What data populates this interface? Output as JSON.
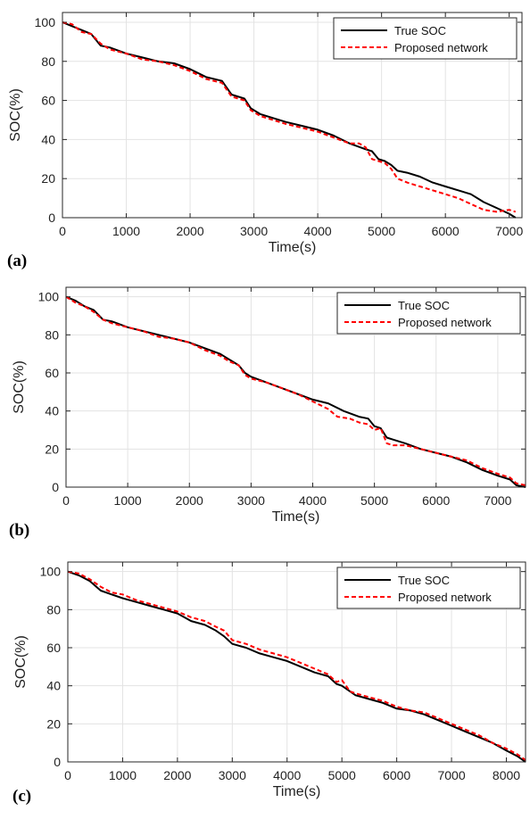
{
  "chart_data": [
    {
      "type": "line",
      "panel_label": "(a)",
      "xlabel": "Time(s)",
      "ylabel": "SOC(%)",
      "xlim": [
        0,
        7200
      ],
      "ylim": [
        0,
        105
      ],
      "xticks": [
        0,
        1000,
        2000,
        3000,
        4000,
        5000,
        6000,
        7000
      ],
      "yticks": [
        0,
        20,
        40,
        60,
        80,
        100
      ],
      "grid": true,
      "legend_position": "top-right",
      "series": [
        {
          "name": "True SOC",
          "color": "#000000",
          "style": "solid",
          "x": [
            0,
            150,
            300,
            450,
            600,
            750,
            1000,
            1250,
            1500,
            1750,
            2000,
            2250,
            2500,
            2650,
            2850,
            2950,
            3100,
            3300,
            3500,
            3750,
            4000,
            4250,
            4500,
            4750,
            4850,
            4950,
            5050,
            5150,
            5250,
            5400,
            5600,
            5800,
            6000,
            6200,
            6400,
            6600,
            6800,
            7000,
            7100
          ],
          "y": [
            100,
            98,
            96,
            94,
            88,
            87,
            84,
            82,
            80,
            79,
            76,
            72,
            70,
            63,
            61,
            56,
            53,
            51,
            49,
            47,
            45,
            42,
            38,
            35,
            34,
            30,
            29,
            27,
            24,
            23,
            21,
            18,
            16,
            14,
            12,
            8,
            5,
            2,
            0
          ]
        },
        {
          "name": "Proposed network",
          "color": "#ff0000",
          "style": "dashed",
          "x": [
            0,
            150,
            300,
            450,
            600,
            750,
            1000,
            1250,
            1500,
            1750,
            2000,
            2250,
            2500,
            2650,
            2850,
            2950,
            3100,
            3300,
            3500,
            3750,
            4000,
            4250,
            4500,
            4650,
            4750,
            4850,
            4950,
            5050,
            5150,
            5250,
            5400,
            5600,
            5800,
            6000,
            6200,
            6400,
            6600,
            6800,
            7000,
            7100
          ],
          "y": [
            100,
            99,
            95,
            94,
            89,
            86,
            84,
            81,
            80,
            78,
            75,
            71,
            69,
            62,
            60,
            55,
            52,
            50,
            48,
            46,
            44,
            41,
            38,
            38,
            36,
            30,
            29,
            28,
            25,
            20,
            18,
            16,
            14,
            12,
            10,
            7,
            4,
            3,
            4,
            3
          ]
        }
      ]
    },
    {
      "type": "line",
      "panel_label": "(b)",
      "xlabel": "Time(s)",
      "ylabel": "SOC(%)",
      "xlim": [
        0,
        7450
      ],
      "ylim": [
        0,
        105
      ],
      "xticks": [
        0,
        1000,
        2000,
        3000,
        4000,
        5000,
        6000,
        7000
      ],
      "yticks": [
        0,
        20,
        40,
        60,
        80,
        100
      ],
      "grid": true,
      "legend_position": "top-right",
      "series": [
        {
          "name": "True SOC",
          "color": "#000000",
          "style": "solid",
          "x": [
            0,
            150,
            300,
            450,
            600,
            750,
            1000,
            1250,
            1500,
            1750,
            2000,
            2250,
            2500,
            2650,
            2800,
            2900,
            3000,
            3250,
            3500,
            3750,
            4000,
            4250,
            4500,
            4750,
            4900,
            5000,
            5100,
            5200,
            5300,
            5500,
            5750,
            6000,
            6250,
            6500,
            6750,
            7000,
            7200,
            7300,
            7450
          ],
          "y": [
            100,
            98,
            95,
            93,
            88,
            87,
            84,
            82,
            80,
            78,
            76,
            73,
            70,
            67,
            64,
            60,
            58,
            55,
            52,
            49,
            46,
            44,
            40,
            37,
            36,
            32,
            31,
            26,
            25,
            23,
            20,
            18,
            16,
            13,
            9,
            6,
            4,
            1,
            0
          ]
        },
        {
          "name": "Proposed network",
          "color": "#ff0000",
          "style": "dashed",
          "x": [
            0,
            150,
            300,
            450,
            600,
            750,
            1000,
            1250,
            1500,
            1750,
            2000,
            2250,
            2500,
            2650,
            2800,
            2900,
            3000,
            3250,
            3500,
            3750,
            4000,
            4250,
            4400,
            4600,
            4750,
            4900,
            5000,
            5100,
            5200,
            5300,
            5500,
            5750,
            6000,
            6250,
            6500,
            6750,
            7000,
            7200,
            7300,
            7450
          ],
          "y": [
            100,
            97,
            95,
            92,
            88,
            86,
            84,
            82,
            79,
            78,
            76,
            72,
            69,
            66,
            64,
            59,
            57,
            55,
            52,
            49,
            45,
            41,
            37,
            36,
            34,
            33,
            30,
            31,
            23,
            22,
            22,
            20,
            18,
            16,
            14,
            10,
            7,
            5,
            2,
            1
          ]
        }
      ]
    },
    {
      "type": "line",
      "panel_label": "(c)",
      "xlabel": "Time(s)",
      "ylabel": "SOC(%)",
      "xlim": [
        0,
        8350
      ],
      "ylim": [
        0,
        105
      ],
      "xticks": [
        0,
        1000,
        2000,
        3000,
        4000,
        5000,
        6000,
        7000,
        8000
      ],
      "yticks": [
        0,
        20,
        40,
        60,
        80,
        100
      ],
      "grid": true,
      "legend_position": "top-right",
      "series": [
        {
          "name": "True SOC",
          "color": "#000000",
          "style": "solid",
          "x": [
            0,
            200,
            400,
            600,
            800,
            1000,
            1250,
            1500,
            1750,
            2000,
            2250,
            2500,
            2700,
            2850,
            3000,
            3250,
            3500,
            3750,
            4000,
            4250,
            4500,
            4750,
            4900,
            5000,
            5150,
            5250,
            5500,
            5750,
            6000,
            6250,
            6500,
            6750,
            7000,
            7250,
            7500,
            7750,
            8000,
            8200,
            8350
          ],
          "y": [
            100,
            98,
            95,
            90,
            88,
            86,
            84,
            82,
            80,
            78,
            74,
            72,
            69,
            66,
            62,
            60,
            57,
            55,
            53,
            50,
            47,
            45,
            41,
            40,
            37,
            35,
            33,
            31,
            28,
            27,
            25,
            22,
            19,
            16,
            13,
            10,
            6,
            3,
            0
          ]
        },
        {
          "name": "Proposed network",
          "color": "#ff0000",
          "style": "dashed",
          "x": [
            0,
            200,
            400,
            600,
            800,
            1000,
            1250,
            1500,
            1750,
            2000,
            2250,
            2500,
            2700,
            2850,
            3000,
            3250,
            3500,
            3750,
            4000,
            4250,
            4500,
            4750,
            4900,
            5000,
            5150,
            5250,
            5500,
            5750,
            6000,
            6250,
            6500,
            6750,
            7000,
            7250,
            7500,
            7750,
            8000,
            8200,
            8350
          ],
          "y": [
            100,
            99,
            96,
            92,
            89,
            88,
            85,
            83,
            81,
            79,
            76,
            74,
            71,
            69,
            64,
            62,
            59,
            57,
            55,
            52,
            49,
            46,
            42,
            43,
            37,
            36,
            34,
            32,
            29,
            27,
            26,
            23,
            20,
            17,
            14,
            10,
            7,
            4,
            1
          ]
        }
      ]
    }
  ]
}
